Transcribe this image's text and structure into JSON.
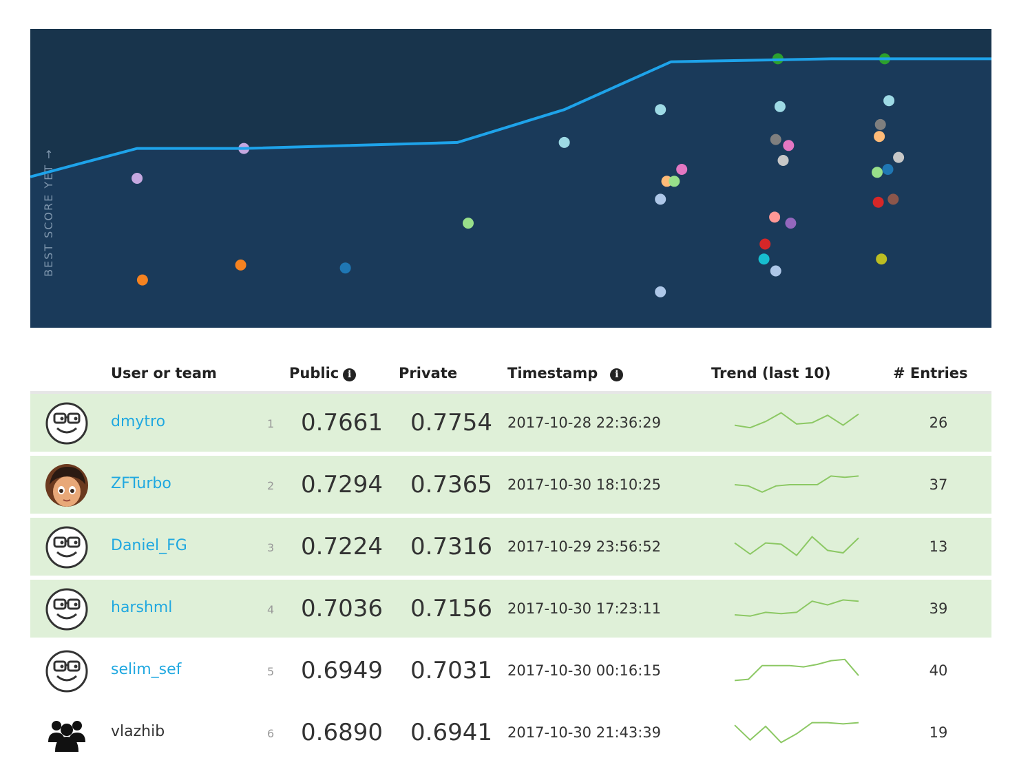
{
  "chart_data": {
    "type": "scatter",
    "ylabel": "BEST SCORE YET →",
    "background": "#1a3a5a",
    "best_line_color": "#1ea3ea",
    "x": [
      1,
      2,
      3,
      4,
      5,
      6,
      7,
      8,
      9
    ],
    "best_line": [
      0.505,
      0.6,
      0.6,
      0.62,
      0.73,
      0.89,
      0.9
    ],
    "best_line_x": [
      0,
      1,
      2,
      4,
      5,
      6,
      7.5
    ],
    "points": [
      {
        "x": 1,
        "y": 0.5,
        "color": "#c5a8e0"
      },
      {
        "x": 1.05,
        "y": 0.16,
        "color": "#f58220"
      },
      {
        "x": 2,
        "y": 0.6,
        "color": "#c5a8e0"
      },
      {
        "x": 1.97,
        "y": 0.21,
        "color": "#f58220"
      },
      {
        "x": 2.95,
        "y": 0.2,
        "color": "#1f77b4"
      },
      {
        "x": 4.1,
        "y": 0.35,
        "color": "#98df8a"
      },
      {
        "x": 5,
        "y": 0.62,
        "color": "#9edae5"
      },
      {
        "x": 5.9,
        "y": 0.73,
        "color": "#9edae5"
      },
      {
        "x": 6.1,
        "y": 0.53,
        "color": "#e377c2"
      },
      {
        "x": 5.96,
        "y": 0.49,
        "color": "#ffbb78"
      },
      {
        "x": 6.03,
        "y": 0.49,
        "color": "#98df8a"
      },
      {
        "x": 5.9,
        "y": 0.43,
        "color": "#aec7e8"
      },
      {
        "x": 5.9,
        "y": 0.12,
        "color": "#aec7e8"
      },
      {
        "x": 7,
        "y": 0.9,
        "color": "#2ca02c"
      },
      {
        "x": 7.02,
        "y": 0.74,
        "color": "#9edae5"
      },
      {
        "x": 6.98,
        "y": 0.63,
        "color": "#7f7f7f"
      },
      {
        "x": 7.1,
        "y": 0.61,
        "color": "#e377c2"
      },
      {
        "x": 7.05,
        "y": 0.56,
        "color": "#c7c7c7"
      },
      {
        "x": 6.97,
        "y": 0.37,
        "color": "#ff9896"
      },
      {
        "x": 7.12,
        "y": 0.35,
        "color": "#9467bd"
      },
      {
        "x": 6.88,
        "y": 0.28,
        "color": "#d62728"
      },
      {
        "x": 6.87,
        "y": 0.23,
        "color": "#17becf"
      },
      {
        "x": 6.98,
        "y": 0.19,
        "color": "#aec7e8"
      },
      {
        "x": 8,
        "y": 0.9,
        "color": "#2ca02c"
      },
      {
        "x": 8.04,
        "y": 0.76,
        "color": "#9edae5"
      },
      {
        "x": 7.96,
        "y": 0.68,
        "color": "#7f7f7f"
      },
      {
        "x": 7.95,
        "y": 0.64,
        "color": "#ffbb78"
      },
      {
        "x": 8.13,
        "y": 0.57,
        "color": "#c7c7c7"
      },
      {
        "x": 8.03,
        "y": 0.53,
        "color": "#1f77b4"
      },
      {
        "x": 7.93,
        "y": 0.52,
        "color": "#98df8a"
      },
      {
        "x": 7.94,
        "y": 0.42,
        "color": "#d62728"
      },
      {
        "x": 8.08,
        "y": 0.43,
        "color": "#8c564b"
      },
      {
        "x": 7.97,
        "y": 0.23,
        "color": "#bcbd22"
      }
    ],
    "xlim": [
      0,
      9
    ],
    "ylim": [
      0,
      1
    ]
  },
  "table": {
    "headers": {
      "team": "User or team",
      "public": "Public",
      "private": "Private",
      "timestamp": "Timestamp",
      "trend": "Trend (last 10)",
      "entries": "# Entries"
    },
    "info_glyph": "i",
    "trend_color": "#8cc864",
    "rows": [
      {
        "name": "dmytro",
        "rank": "1",
        "public": "0.7661",
        "private": "0.7754",
        "timestamp": "2017-10-28 22:36:29",
        "entries": "26",
        "avatar": "default-avatar",
        "medal": true,
        "link": true,
        "trend": [
          0.4,
          0.3,
          0.55,
          0.9,
          0.45,
          0.5,
          0.8,
          0.4,
          0.85
        ]
      },
      {
        "name": "ZFTurbo",
        "rank": "2",
        "public": "0.7294",
        "private": "0.7365",
        "timestamp": "2017-10-30 18:10:25",
        "entries": "37",
        "avatar": "photo-avatar",
        "medal": true,
        "link": true,
        "trend": [
          0.5,
          0.45,
          0.2,
          0.45,
          0.5,
          0.5,
          0.5,
          0.85,
          0.8,
          0.85
        ]
      },
      {
        "name": "Daniel_FG",
        "rank": "3",
        "public": "0.7224",
        "private": "0.7316",
        "timestamp": "2017-10-29 23:56:52",
        "entries": "13",
        "avatar": "default-avatar",
        "medal": true,
        "link": true,
        "trend": [
          0.65,
          0.2,
          0.65,
          0.6,
          0.15,
          0.9,
          0.35,
          0.25,
          0.85
        ]
      },
      {
        "name": "harshml",
        "rank": "4",
        "public": "0.7036",
        "private": "0.7156",
        "timestamp": "2017-10-30 17:23:11",
        "entries": "39",
        "avatar": "default-avatar",
        "medal": true,
        "link": true,
        "trend": [
          0.25,
          0.2,
          0.35,
          0.3,
          0.35,
          0.8,
          0.65,
          0.85,
          0.8
        ]
      },
      {
        "name": "selim_sef",
        "rank": "5",
        "public": "0.6949",
        "private": "0.7031",
        "timestamp": "2017-10-30 00:16:15",
        "entries": "40",
        "avatar": "default-avatar",
        "medal": false,
        "link": true,
        "trend": [
          0.1,
          0.15,
          0.7,
          0.7,
          0.7,
          0.65,
          0.75,
          0.9,
          0.95,
          0.3
        ]
      },
      {
        "name": "vlazhib",
        "rank": "6",
        "public": "0.6890",
        "private": "0.6941",
        "timestamp": "2017-10-30 21:43:39",
        "entries": "19",
        "avatar": "team-icon",
        "medal": false,
        "link": false,
        "trend": [
          0.8,
          0.2,
          0.75,
          0.1,
          0.45,
          0.9,
          0.9,
          0.85,
          0.9
        ]
      }
    ]
  }
}
